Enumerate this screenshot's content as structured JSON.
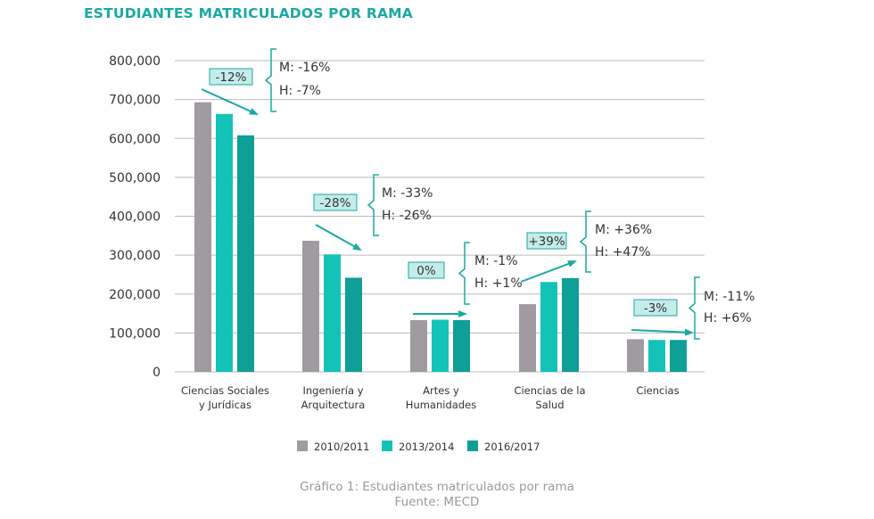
{
  "chart_data": {
    "type": "bar",
    "title": "ESTUDIANTES MATRICULADOS POR RAMA",
    "categories": [
      [
        "Ciencias Sociales",
        "y Jurídicas"
      ],
      [
        "Ingeniería y",
        "Arquitectura"
      ],
      [
        "Artes y",
        "Humanidades"
      ],
      [
        "Ciencias de la",
        "Salud"
      ],
      [
        "Ciencias"
      ]
    ],
    "series": [
      {
        "name": "2010/2011",
        "color": "#a09ba0",
        "values": [
          693000,
          337000,
          133000,
          174000,
          84000
        ]
      },
      {
        "name": "2013/2014",
        "color": "#13c3b7",
        "values": [
          663000,
          302000,
          134000,
          231000,
          82000
        ]
      },
      {
        "name": "2016/2017",
        "color": "#0e9f96",
        "values": [
          608000,
          242000,
          133000,
          241000,
          82000
        ]
      }
    ],
    "ylim": [
      0,
      800000
    ],
    "yticks": [
      "0",
      "100,000",
      "200,000",
      "300,000",
      "400,000",
      "500,000",
      "600,000",
      "700,000",
      "800,000"
    ],
    "grid": true,
    "legend_position": "bottom",
    "annotations": [
      {
        "change": "-12%",
        "m": "M: -16%",
        "h": "H: -7%"
      },
      {
        "change": "-28%",
        "m": "M: -33%",
        "h": "H: -26%"
      },
      {
        "change": "0%",
        "m": "M: -1%",
        "h": "H: +1%"
      },
      {
        "change": "+39%",
        "m": "M: +36%",
        "h": "H: +47%"
      },
      {
        "change": "-3%",
        "m": "M: -11%",
        "h": "H: +6%"
      }
    ]
  },
  "caption": {
    "line1": "Gráfico 1: Estudiantes matriculados por rama",
    "line2": "Fuente: MECD"
  },
  "colors": {
    "accent": "#1aa9a2",
    "badge_fill": "#c4ecea",
    "grid": "#bbbbbb"
  }
}
